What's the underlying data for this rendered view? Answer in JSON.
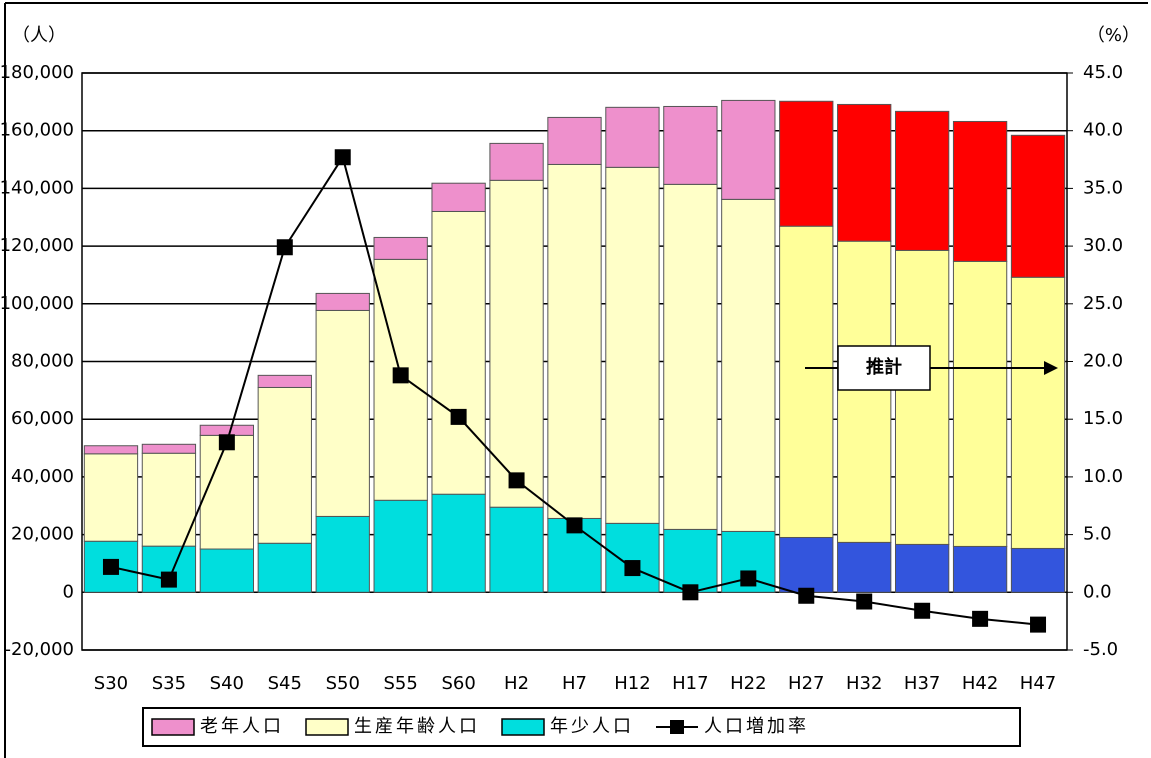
{
  "chart_data": {
    "type": "bar",
    "stacked": true,
    "ylabel": "（人）",
    "y2label": "（%）",
    "annotation": "推計",
    "categories": [
      "S30",
      "S35",
      "S40",
      "S45",
      "S50",
      "S55",
      "S60",
      "H2",
      "H7",
      "H12",
      "H17",
      "H22",
      "H27",
      "H32",
      "H37",
      "H42",
      "H47"
    ],
    "series": [
      {
        "name": "年少人口",
        "color": "#00dede",
        "colors": [
          "#00dede",
          "#00dede",
          "#00dede",
          "#00dede",
          "#00dede",
          "#00dede",
          "#00dede",
          "#00dede",
          "#00dede",
          "#00dede",
          "#00dede",
          "#00dede",
          "#3355dd",
          "#3355dd",
          "#3355dd",
          "#3355dd",
          "#3355dd"
        ],
        "values": [
          17700,
          16000,
          15000,
          17000,
          26300,
          31900,
          34000,
          29500,
          25600,
          23900,
          21800,
          21100,
          19000,
          17300,
          16600,
          15900,
          15200
        ]
      },
      {
        "name": "生産年齢人口",
        "color": "#ffffc8",
        "colors": [
          "#ffffc8",
          "#ffffc8",
          "#ffffc8",
          "#ffffc8",
          "#ffffc8",
          "#ffffc8",
          "#ffffc8",
          "#ffffc8",
          "#ffffc8",
          "#ffffc8",
          "#ffffc8",
          "#ffffc8",
          "#ffff99",
          "#ffff99",
          "#ffff99",
          "#ffff99",
          "#ffff99"
        ],
        "values": [
          30300,
          32200,
          39400,
          54000,
          71400,
          83500,
          98000,
          113300,
          122700,
          123400,
          119600,
          115100,
          107900,
          104400,
          101900,
          98800,
          94000
        ]
      },
      {
        "name": "老年人口",
        "color": "#ee90cc",
        "colors": [
          "#ee90cc",
          "#ee90cc",
          "#ee90cc",
          "#ee90cc",
          "#ee90cc",
          "#ee90cc",
          "#ee90cc",
          "#ee90cc",
          "#ee90cc",
          "#ee90cc",
          "#ee90cc",
          "#ee90cc",
          "#ff0000",
          "#ff0000",
          "#ff0000",
          "#ff0000",
          "#ff0000"
        ],
        "values": [
          2800,
          3100,
          3500,
          4200,
          5900,
          7600,
          9800,
          12800,
          16300,
          20800,
          27000,
          34300,
          43300,
          47400,
          48200,
          48500,
          49200
        ]
      },
      {
        "name": "人口増加率",
        "type": "line",
        "axis": "y2",
        "color": "#000000",
        "values": [
          2.2,
          1.1,
          13.0,
          29.9,
          37.7,
          18.8,
          15.2,
          9.7,
          5.8,
          2.1,
          0.0,
          1.2,
          -0.3,
          -0.8,
          -1.6,
          -2.3,
          -2.8
        ]
      }
    ],
    "ylim": [
      -20000,
      180000
    ],
    "yticks": [
      {
        "value": -20000,
        "label": "-20,000"
      },
      0,
      {
        "value": 20000,
        "label": "20,000"
      },
      {
        "value": 40000,
        "label": "40,000"
      },
      {
        "value": 60000,
        "label": "60,000"
      },
      {
        "value": 80000,
        "label": "80,000"
      },
      {
        "value": 100000,
        "label": "100,000"
      },
      {
        "value": 120000,
        "label": "120,000"
      },
      {
        "value": 140000,
        "label": "140,000"
      },
      {
        "value": 160000,
        "label": "160,000"
      },
      {
        "value": 180000,
        "label": "180,000"
      }
    ],
    "y2lim": [
      -5,
      45
    ],
    "y2ticks": [
      {
        "value": -5,
        "label": "-5.0"
      },
      {
        "value": 0,
        "label": "0.0"
      },
      {
        "value": 5,
        "label": "5.0"
      },
      {
        "value": 10,
        "label": "10.0"
      },
      {
        "value": 15,
        "label": "15.0"
      },
      {
        "value": 20,
        "label": "20.0"
      },
      {
        "value": 25,
        "label": "25.0"
      },
      {
        "value": 30,
        "label": "30.0"
      },
      {
        "value": 35,
        "label": "35.0"
      },
      {
        "value": 40,
        "label": "40.0"
      },
      {
        "value": 45,
        "label": "45.0"
      }
    ],
    "negative_tick_color": "#ff0000",
    "grid": true,
    "legend": "bottom"
  }
}
